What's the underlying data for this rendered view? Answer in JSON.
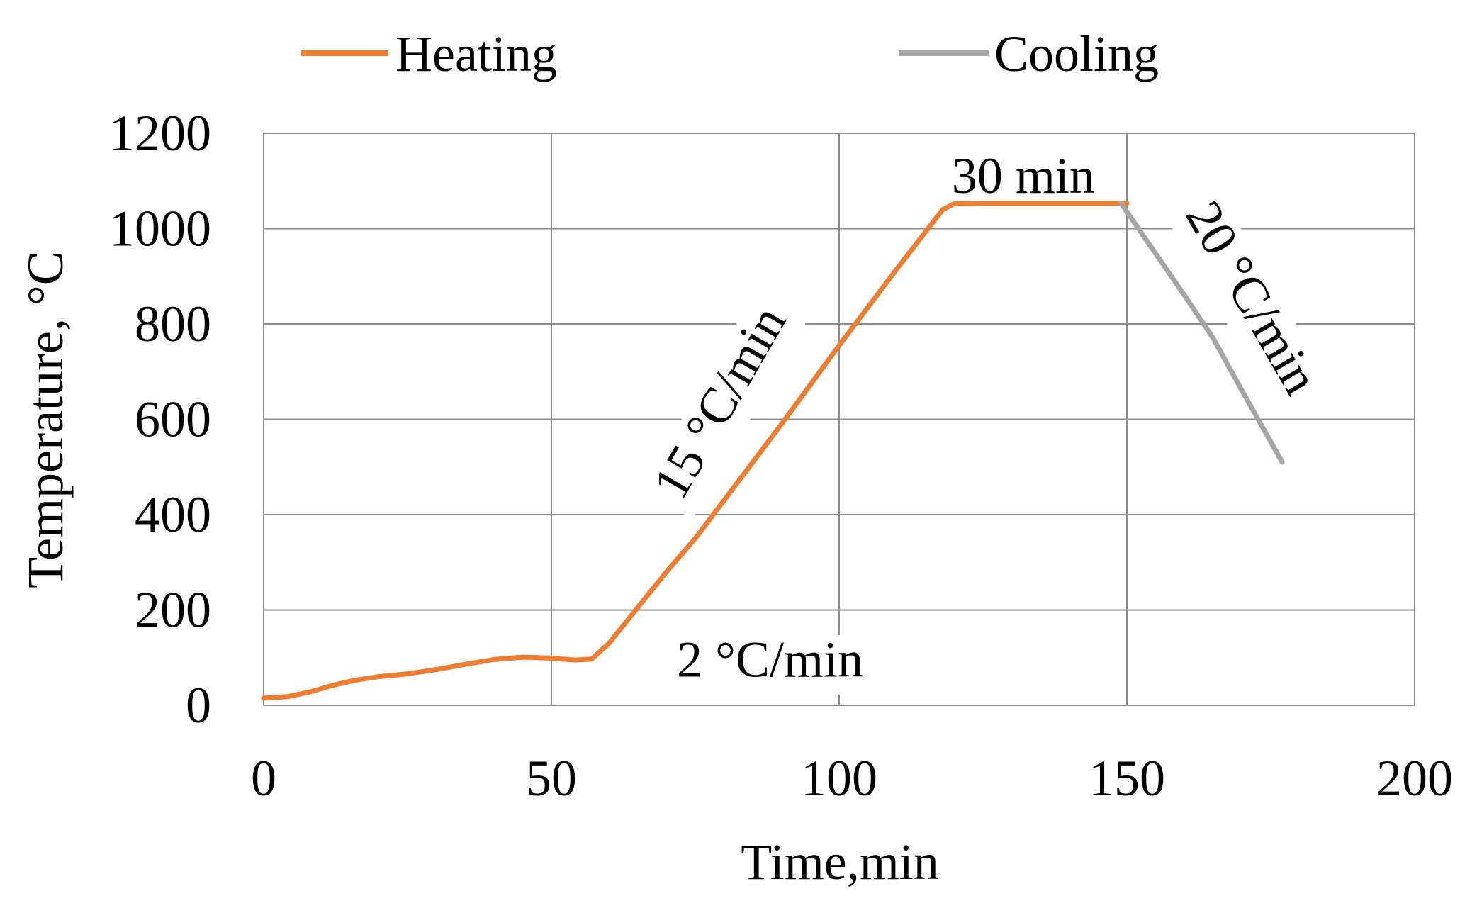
{
  "chart_data": {
    "type": "line",
    "xlabel": "Time,min",
    "ylabel": "Temperature, °C",
    "xlim": [
      0,
      200
    ],
    "ylim": [
      0,
      1200
    ],
    "xticks": [
      0,
      50,
      100,
      150,
      200
    ],
    "yticks": [
      0,
      200,
      400,
      600,
      800,
      1000,
      1200
    ],
    "grid": true,
    "legend_position": "top",
    "series": [
      {
        "name": "Heating",
        "color": "#ED7D31",
        "points": [
          [
            0,
            15
          ],
          [
            4,
            18
          ],
          [
            8,
            28
          ],
          [
            12,
            42
          ],
          [
            16,
            53
          ],
          [
            20,
            60
          ],
          [
            25,
            66
          ],
          [
            30,
            75
          ],
          [
            35,
            86
          ],
          [
            40,
            96
          ],
          [
            45,
            101
          ],
          [
            50,
            99
          ],
          [
            54,
            95
          ],
          [
            57,
            97
          ],
          [
            60,
            130
          ],
          [
            65,
            205
          ],
          [
            70,
            280
          ],
          [
            75,
            350
          ],
          [
            80,
            430
          ],
          [
            90,
            590
          ],
          [
            100,
            755
          ],
          [
            110,
            915
          ],
          [
            118,
            1040
          ],
          [
            120,
            1052
          ],
          [
            125,
            1053
          ],
          [
            150,
            1053
          ]
        ]
      },
      {
        "name": "Cooling",
        "color": "#A5A5A5",
        "points": [
          [
            149,
            1053
          ],
          [
            154,
            965
          ],
          [
            160,
            860
          ],
          [
            165,
            770
          ],
          [
            170,
            660
          ],
          [
            177,
            510
          ]
        ]
      }
    ],
    "annotations": [
      {
        "text": "30 min",
        "x": 132,
        "y": 1100,
        "rotation": 0
      },
      {
        "text": "15 °C/min",
        "x": 80,
        "y": 630,
        "rotation": -60
      },
      {
        "text": "20 °C/min",
        "x": 171,
        "y": 850,
        "rotation": 60
      },
      {
        "text": "2 °C/min",
        "x": 88,
        "y": 85,
        "rotation": 0
      }
    ]
  }
}
